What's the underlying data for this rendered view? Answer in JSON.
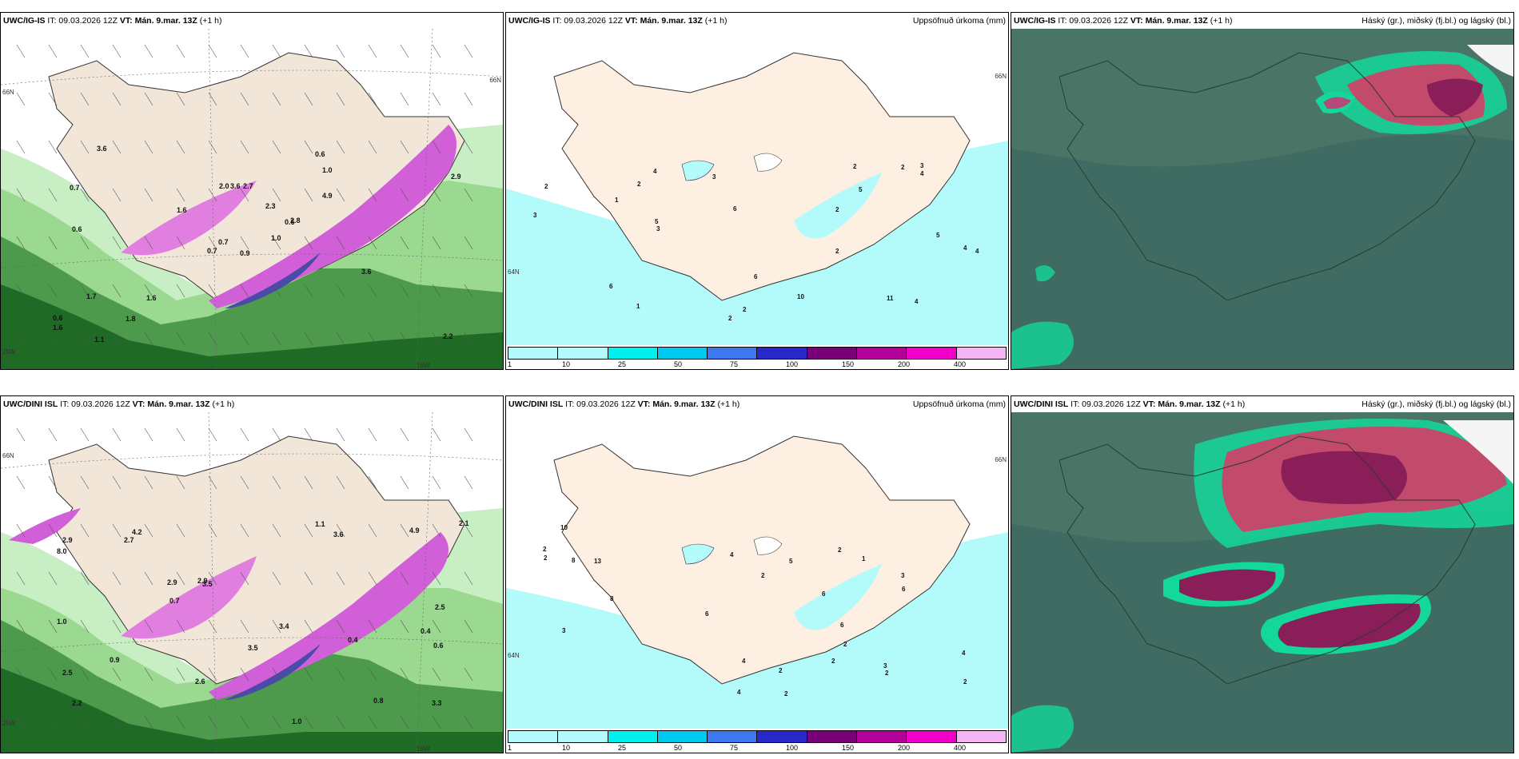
{
  "row1": {
    "model": "UWC/IG-IS",
    "it": "IT: 09.03.2026 12Z",
    "vt": "VT: Mán. 9.mar. 13Z",
    "lead": "(+1 h)"
  },
  "row2": {
    "model": "UWC/DINI ISL",
    "it": "IT: 09.03.2026 12Z",
    "vt": "VT: Mán. 9.mar. 13Z",
    "lead": "(+1 h)"
  },
  "precip_title": "Uppsöfnuð úrkoma (mm)",
  "cloud_title": "Háský (gr.), miðský (fj.bl.) og lágský (bl.)",
  "legend": {
    "ticks": [
      "1",
      "10",
      "25",
      "50",
      "75",
      "100",
      "150",
      "200",
      "400"
    ],
    "colors": [
      "#b3fafa",
      "#00f0f0",
      "#00c8f0",
      "#3c78f0",
      "#2828c8",
      "#780078",
      "#b4009b",
      "#f000c8",
      "#f5b4f5"
    ]
  },
  "coords": {
    "lat66": "66N",
    "lat64": "64N",
    "lon25": "25W",
    "lon15": "15W"
  },
  "wind_labels_top": [
    "0.9",
    "0.7",
    "0.7",
    "0.6",
    "0.6",
    "1.6",
    "0.6",
    "2.7",
    "1.0",
    "1.0",
    "3.6",
    "2.2",
    "0.6",
    "2.9",
    "0.7",
    "4.9",
    "1.1",
    "2.0",
    "2.3",
    "1.7",
    "1.6",
    "1.6",
    "1.8",
    "3.6",
    "2.8",
    "3.6"
  ],
  "wind_labels_bottom": [
    "0.4",
    "0.4",
    "2.2",
    "4.2",
    "3.5",
    "0.8",
    "2.5",
    "3.6",
    "2.9",
    "1.0",
    "8.0",
    "1.0",
    "2.9",
    "3.3",
    "2.6",
    "2.5",
    "3.5",
    "3.4",
    "2.9",
    "0.9",
    "2.1",
    "4.9",
    "0.7",
    "0.6",
    "1.1",
    "2.7"
  ],
  "precip_labels_top": [
    "2",
    "2",
    "2",
    "2",
    "2",
    "2",
    "2",
    "3",
    "3",
    "4",
    "4",
    "4",
    "5",
    "6",
    "3",
    "1",
    "5",
    "3",
    "4",
    "10",
    "11",
    "5",
    "6",
    "6",
    "2",
    "1",
    "4"
  ],
  "precip_labels_bottom": [
    "2",
    "2",
    "2",
    "3",
    "4",
    "4",
    "2",
    "2",
    "8",
    "3",
    "3",
    "5",
    "6",
    "8",
    "2",
    "1",
    "4",
    "2",
    "2",
    "2",
    "2",
    "4",
    "6",
    "6",
    "6",
    "13",
    "10"
  ]
}
